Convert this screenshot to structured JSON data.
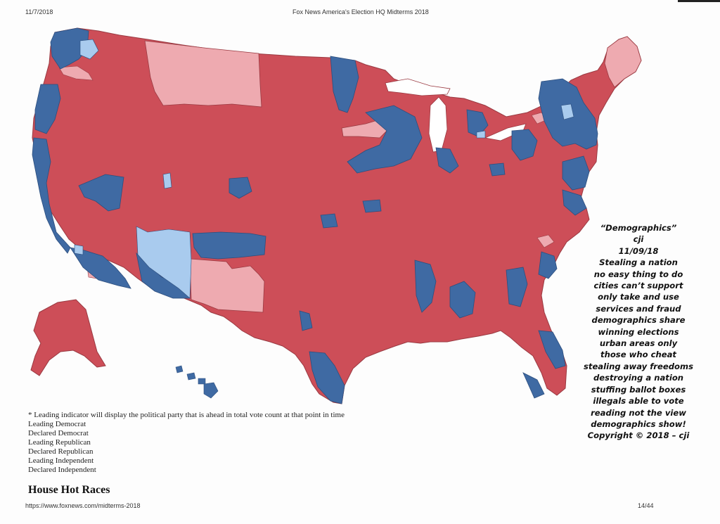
{
  "header": {
    "date": "11/7/2018",
    "title": "Fox News America's Election HQ Midterms 2018"
  },
  "colors": {
    "leading_democrat": "#a9cbee",
    "declared_democrat": "#3f6aa3",
    "leading_republican": "#eeaab0",
    "declared_republican": "#cd4e58",
    "border": "#9a3a42"
  },
  "legend": {
    "note": "* Leading indicator will display the political party that is ahead in total vote count at that point in time",
    "items": [
      "Leading Democrat",
      "Declared Democrat",
      "Leading Republican",
      "Declared Republican",
      "Leading Independent",
      "Declared Independent"
    ]
  },
  "section_title": "House Hot Races",
  "footer": {
    "url": "https://www.foxnews.com/midterms-2018",
    "page": "14/44"
  },
  "annotation": {
    "lines": [
      "“Demographics”",
      "cji",
      "11/09/18",
      "Stealing a nation",
      "no easy thing to do",
      "cities can’t support",
      "only take and use",
      "services and fraud",
      "demographics share",
      "winning elections",
      "urban areas only",
      "those who cheat",
      "stealing away freedoms",
      "destroying a nation",
      "stuffing ballot boxes",
      "illegals able to vote",
      "reading not the view",
      "demographics show!",
      "Copyright © 2018 – cji"
    ]
  }
}
